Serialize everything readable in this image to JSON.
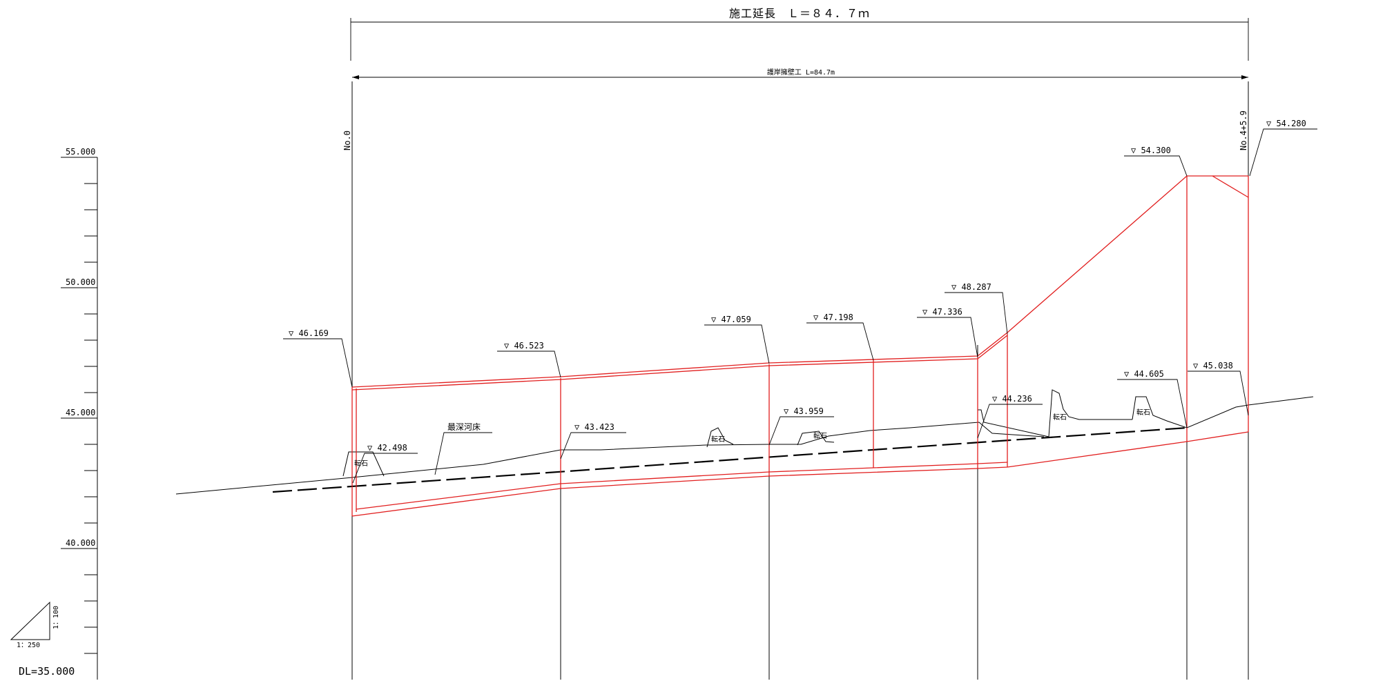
{
  "header": {
    "total_length": "施工延長　Ｌ＝８４．７ｍ",
    "revetment_length": "護岸擁壁工 L=84.7m"
  },
  "stations": {
    "start": "No.0",
    "end": "No.4+5.9"
  },
  "scale_axis": {
    "datum": "DL=35.000",
    "tick_labels": [
      "55.000",
      "50.000",
      "45.000",
      "40.000"
    ]
  },
  "scale_triangle": {
    "vertical": "1：100",
    "horizontal": "1：250"
  },
  "elevations": {
    "e46169": "▽ 46.169",
    "e46523": "▽ 46.523",
    "e47059": "▽ 47.059",
    "e47198": "▽ 47.198",
    "e47336": "▽ 47.336",
    "e48287": "▽ 48.287",
    "e54300": "▽ 54.300",
    "e54280": "▽ 54.280",
    "e42498": "▽ 42.498",
    "e43423": "▽ 43.423",
    "e43959": "▽ 43.959",
    "e44236": "▽ 44.236",
    "e44605": "▽ 44.605",
    "e45038": "▽ 45.038"
  },
  "labels": {
    "deepest_riverbed": "最深河床",
    "boulder": "転石"
  },
  "colors": {
    "structure": "#e11d1d",
    "ground": "#000000"
  }
}
